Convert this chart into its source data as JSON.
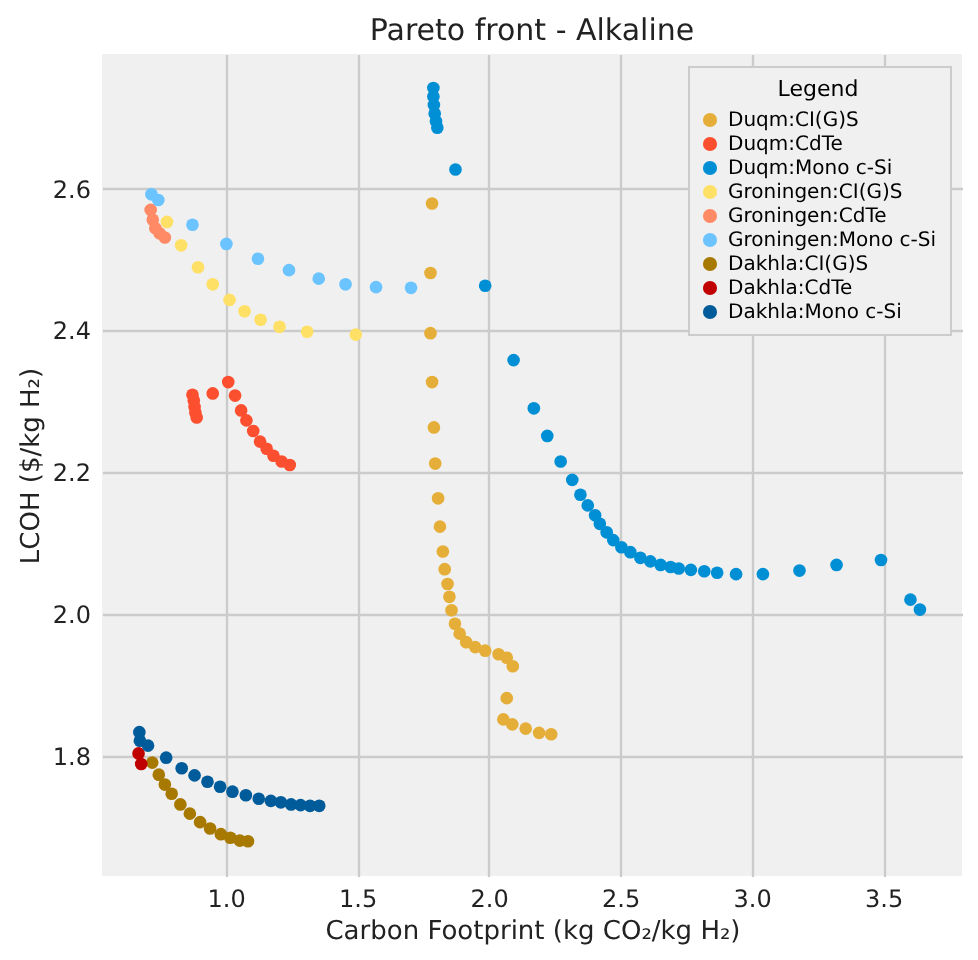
{
  "chart_data": {
    "type": "scatter",
    "title": "Pareto front - Alkaline",
    "xlabel": "Carbon Footprint (kg CO₂/kg H₂)",
    "ylabel": "LCOH ($/kg H₂)",
    "legend_title": "Legend",
    "xlim": [
      0.53,
      3.8
    ],
    "ylim": [
      1.63,
      2.79
    ],
    "xticks": [
      {
        "value": 1,
        "label": "1.0"
      },
      1.5,
      {
        "value": 2,
        "label": "2.0"
      },
      2.5,
      {
        "value": 3,
        "label": "3.0"
      },
      3.5
    ],
    "yticks": [
      1.8,
      {
        "value": 2,
        "label": "2.0"
      },
      2.2,
      2.4,
      2.6
    ],
    "grid": true,
    "legend": "top right",
    "marker": "circle",
    "series": [
      {
        "name": "Duqm:CI(G)S",
        "color": "#e5ae38",
        "x": [
          1.785,
          1.779,
          1.779,
          1.785,
          1.792,
          1.797,
          1.808,
          1.815,
          1.826,
          1.833,
          1.844,
          1.851,
          1.859,
          1.872,
          1.89,
          1.915,
          1.949,
          1.987,
          2.038,
          2.069,
          2.092,
          2.069,
          2.056,
          2.09,
          2.141,
          2.192,
          2.238
        ],
        "values": [
          2.579,
          2.481,
          2.396,
          2.327,
          2.263,
          2.212,
          2.163,
          2.123,
          2.088,
          2.063,
          2.042,
          2.024,
          2.005,
          1.986,
          1.972,
          1.96,
          1.953,
          1.948,
          1.943,
          1.938,
          1.926,
          1.881,
          1.851,
          1.844,
          1.838,
          1.832,
          1.83
        ]
      },
      {
        "name": "Duqm:CdTe",
        "color": "#fc4f30",
        "x": [
          0.874,
          0.879,
          0.882,
          0.885,
          0.89,
          0.951,
          1.01,
          1.036,
          1.059,
          1.079,
          1.105,
          1.131,
          1.156,
          1.182,
          1.213,
          1.244
        ],
        "values": [
          2.309,
          2.301,
          2.292,
          2.284,
          2.277,
          2.311,
          2.327,
          2.308,
          2.287,
          2.273,
          2.258,
          2.243,
          2.233,
          2.223,
          2.215,
          2.21
        ]
      },
      {
        "name": "Duqm:Mono c-Si",
        "color": "#008fd5",
        "x": [
          1.79,
          1.79,
          1.792,
          1.795,
          1.8,
          1.805,
          1.874,
          1.987,
          2.095,
          2.172,
          2.223,
          2.274,
          2.318,
          2.349,
          2.377,
          2.405,
          2.423,
          2.449,
          2.474,
          2.505,
          2.539,
          2.577,
          2.615,
          2.654,
          2.692,
          2.723,
          2.769,
          2.82,
          2.869,
          2.941,
          3.043,
          3.182,
          3.323,
          3.492,
          3.604,
          3.64
        ],
        "values": [
          2.742,
          2.73,
          2.718,
          2.706,
          2.695,
          2.686,
          2.627,
          2.463,
          2.358,
          2.29,
          2.251,
          2.215,
          2.189,
          2.168,
          2.153,
          2.139,
          2.127,
          2.115,
          2.104,
          2.094,
          2.087,
          2.079,
          2.074,
          2.069,
          2.066,
          2.064,
          2.062,
          2.06,
          2.058,
          2.056,
          2.056,
          2.061,
          2.069,
          2.076,
          2.02,
          2.006
        ]
      },
      {
        "name": "Groningen:CI(G)S",
        "color": "#ffe066",
        "x": [
          0.777,
          0.831,
          0.895,
          0.951,
          1.015,
          1.072,
          1.133,
          1.205,
          1.31,
          1.495
        ],
        "values": [
          2.553,
          2.52,
          2.489,
          2.465,
          2.443,
          2.427,
          2.415,
          2.405,
          2.398,
          2.394
        ]
      },
      {
        "name": "Groningen:CdTe",
        "color": "#ff8a65",
        "x": [
          0.715,
          0.723,
          0.733,
          0.749,
          0.769
        ],
        "values": [
          2.57,
          2.556,
          2.544,
          2.537,
          2.531
        ]
      },
      {
        "name": "Groningen:Mono c-Si",
        "color": "#6bc4ff",
        "x": [
          0.718,
          0.744,
          0.874,
          1.003,
          1.123,
          1.241,
          1.354,
          1.456,
          1.572,
          1.705
        ],
        "values": [
          2.592,
          2.584,
          2.549,
          2.522,
          2.501,
          2.485,
          2.473,
          2.465,
          2.461,
          2.46
        ]
      },
      {
        "name": "Dakhla:CI(G)S",
        "color": "#a87900",
        "x": [
          0.721,
          0.746,
          0.769,
          0.795,
          0.828,
          0.864,
          0.903,
          0.941,
          0.982,
          1.018,
          1.054,
          1.085
        ],
        "values": [
          1.79,
          1.773,
          1.759,
          1.746,
          1.731,
          1.718,
          1.706,
          1.697,
          1.689,
          1.684,
          1.68,
          1.679
        ]
      },
      {
        "name": "Dakhla:CdTe",
        "color": "#c00000",
        "x": [
          0.669,
          0.679
        ],
        "values": [
          1.803,
          1.788
        ]
      },
      {
        "name": "Dakhla:Mono c-Si",
        "color": "#005b9a",
        "x": [
          0.672,
          0.674,
          0.705,
          0.774,
          0.833,
          0.882,
          0.931,
          0.979,
          1.026,
          1.077,
          1.126,
          1.172,
          1.21,
          1.249,
          1.285,
          1.321,
          1.356
        ],
        "values": [
          1.833,
          1.821,
          1.814,
          1.797,
          1.782,
          1.772,
          1.763,
          1.756,
          1.749,
          1.744,
          1.739,
          1.736,
          1.734,
          1.731,
          1.73,
          1.729,
          1.729
        ]
      }
    ]
  }
}
